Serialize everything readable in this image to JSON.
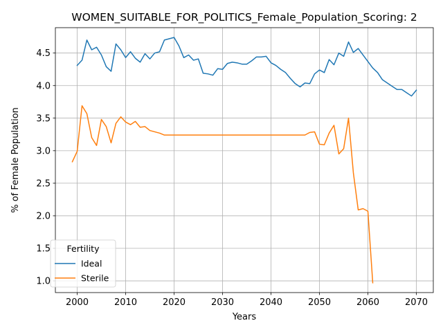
{
  "chart_data": {
    "type": "line",
    "title": "WOMEN_SUITABLE_FOR_POLITICS_Female_Population_Scoring: 2",
    "xlabel": "Years",
    "ylabel": "% of Female Population",
    "xlim": [
      1995.5,
      2073.5
    ],
    "ylim": [
      0.82,
      4.89
    ],
    "x_ticks": [
      2000,
      2010,
      2020,
      2030,
      2040,
      2050,
      2060,
      2070
    ],
    "y_ticks": [
      1.0,
      1.5,
      2.0,
      2.5,
      3.0,
      3.5,
      4.0,
      4.5
    ],
    "y_tick_labels": [
      "1.0",
      "1.5",
      "2.0",
      "2.5",
      "3.0",
      "3.5",
      "4.0",
      "4.5"
    ],
    "grid": true,
    "legend": {
      "title": "Fertility",
      "position": "lower-left"
    },
    "series": [
      {
        "name": "Ideal",
        "color": "#1f77b4",
        "x": [
          2000,
          2001,
          2002,
          2003,
          2004,
          2005,
          2006,
          2007,
          2008,
          2009,
          2010,
          2011,
          2012,
          2013,
          2014,
          2015,
          2016,
          2017,
          2018,
          2019,
          2020,
          2021,
          2022,
          2023,
          2024,
          2025,
          2026,
          2027,
          2028,
          2029,
          2030,
          2031,
          2032,
          2033,
          2034,
          2035,
          2036,
          2037,
          2038,
          2039,
          2040,
          2041,
          2042,
          2043,
          2044,
          2045,
          2046,
          2047,
          2048,
          2049,
          2050,
          2051,
          2052,
          2053,
          2054,
          2055,
          2056,
          2057,
          2058,
          2059,
          2060,
          2061,
          2062,
          2063,
          2064,
          2065,
          2066,
          2067,
          2068,
          2069,
          2070
        ],
        "values": [
          4.31,
          4.39,
          4.7,
          4.55,
          4.59,
          4.47,
          4.29,
          4.22,
          4.64,
          4.55,
          4.43,
          4.52,
          4.42,
          4.36,
          4.49,
          4.41,
          4.5,
          4.52,
          4.7,
          4.72,
          4.74,
          4.61,
          4.43,
          4.47,
          4.39,
          4.41,
          4.19,
          4.18,
          4.16,
          4.26,
          4.25,
          4.34,
          4.36,
          4.35,
          4.33,
          4.33,
          4.38,
          4.44,
          4.44,
          4.45,
          4.35,
          4.31,
          4.25,
          4.2,
          4.11,
          4.03,
          3.98,
          4.04,
          4.03,
          4.18,
          4.24,
          4.2,
          4.4,
          4.32,
          4.5,
          4.45,
          4.67,
          4.51,
          4.57,
          4.47,
          4.37,
          4.27,
          4.2,
          4.09,
          4.04,
          3.99,
          3.94,
          3.94,
          3.89,
          3.84,
          3.93
        ]
      },
      {
        "name": "Sterile",
        "color": "#ff7f0e",
        "x": [
          1999,
          2000,
          2001,
          2002,
          2003,
          2004,
          2005,
          2006,
          2007,
          2008,
          2009,
          2010,
          2011,
          2012,
          2013,
          2014,
          2015,
          2016,
          2017,
          2018,
          2019,
          2020,
          2021,
          2022,
          2023,
          2024,
          2025,
          2026,
          2027,
          2028,
          2029,
          2030,
          2031,
          2032,
          2033,
          2034,
          2035,
          2036,
          2037,
          2038,
          2039,
          2040,
          2041,
          2042,
          2043,
          2044,
          2045,
          2046,
          2047,
          2048,
          2049,
          2050,
          2051,
          2052,
          2053,
          2054,
          2055,
          2056,
          2057,
          2058,
          2059,
          2060,
          2061
        ],
        "values": [
          2.83,
          2.99,
          3.69,
          3.57,
          3.2,
          3.08,
          3.48,
          3.37,
          3.12,
          3.42,
          3.52,
          3.44,
          3.4,
          3.45,
          3.36,
          3.37,
          3.31,
          3.29,
          3.27,
          3.24,
          3.24,
          3.24,
          3.24,
          3.24,
          3.24,
          3.24,
          3.24,
          3.24,
          3.24,
          3.24,
          3.24,
          3.24,
          3.24,
          3.24,
          3.24,
          3.24,
          3.24,
          3.24,
          3.24,
          3.24,
          3.24,
          3.24,
          3.24,
          3.24,
          3.24,
          3.24,
          3.24,
          3.24,
          3.24,
          3.28,
          3.29,
          3.1,
          3.09,
          3.27,
          3.39,
          2.95,
          3.03,
          3.5,
          2.66,
          2.09,
          2.11,
          2.07,
          0.97
        ]
      }
    ]
  }
}
